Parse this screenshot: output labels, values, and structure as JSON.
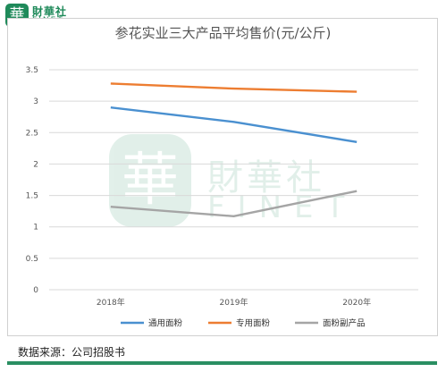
{
  "brand": {
    "cn": "財華社",
    "en": "FINET",
    "mark": "華"
  },
  "source_text": "数据来源：公司招股书",
  "chart_data": {
    "type": "line",
    "title": "参花实业三大产品平均售价(元/公斤)",
    "categories": [
      "2018年",
      "2019年",
      "2020年"
    ],
    "ylim": [
      0,
      3.5
    ],
    "yticks": [
      "0",
      "0.5",
      "1",
      "1.5",
      "2",
      "2.5",
      "3",
      "3.5"
    ],
    "grid": true,
    "legend_position": "bottom",
    "series": [
      {
        "name": "通用面粉",
        "values": [
          2.9,
          2.67,
          2.35
        ],
        "color": "#4a90d0"
      },
      {
        "name": "专用面粉",
        "values": [
          3.28,
          3.2,
          3.15
        ],
        "color": "#ed7d31"
      },
      {
        "name": "面粉副产品",
        "values": [
          1.32,
          1.17,
          1.57
        ],
        "color": "#a5a5a5"
      }
    ]
  }
}
